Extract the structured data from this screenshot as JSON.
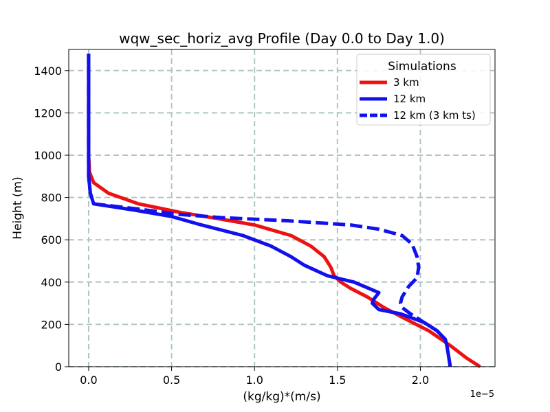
{
  "chart_data": {
    "type": "line",
    "title": "wqw_sec_horiz_avg Profile (Day 0.0 to Day 1.0)",
    "xlabel": "(kg/kg)*(m/s)",
    "ylabel": "Height (m)",
    "x_offset_label": "1e−5",
    "xlim": [
      -0.12,
      2.45
    ],
    "ylim": [
      0,
      1500
    ],
    "x_ticks": [
      0.0,
      0.5,
      1.0,
      1.5,
      2.0
    ],
    "x_tick_labels": [
      "0.0",
      "0.5",
      "1.0",
      "1.5",
      "2.0"
    ],
    "y_ticks": [
      0,
      200,
      400,
      600,
      800,
      1000,
      1200,
      1400
    ],
    "y_tick_labels": [
      "0",
      "200",
      "400",
      "600",
      "800",
      "1000",
      "1200",
      "1400"
    ],
    "grid": true,
    "legend": {
      "title": "Simulations",
      "placement": "top-right"
    },
    "series": [
      {
        "name": "3 km",
        "color": "#ee1111",
        "style": "solid",
        "x": [
          2.36,
          2.28,
          2.18,
          2.05,
          1.9,
          1.78,
          1.68,
          1.58,
          1.52,
          1.48,
          1.46,
          1.42,
          1.34,
          1.22,
          1.0,
          0.78,
          0.55,
          0.3,
          0.12,
          0.03,
          0.005,
          0.0,
          0.0,
          0.0,
          0.0
        ],
        "y": [
          0,
          40,
          100,
          170,
          230,
          280,
          330,
          370,
          400,
          430,
          470,
          520,
          570,
          620,
          670,
          700,
          730,
          770,
          820,
          870,
          920,
          1000,
          1200,
          1400,
          1480
        ]
      },
      {
        "name": "12 km",
        "color": "#1111ee",
        "style": "solid",
        "x": [
          2.18,
          2.17,
          2.16,
          2.15,
          2.1,
          2.02,
          1.88,
          1.75,
          1.71,
          1.72,
          1.75,
          1.6,
          1.44,
          1.3,
          1.22,
          1.1,
          0.93,
          0.68,
          0.5,
          0.28,
          0.03,
          0.01,
          0.0,
          0.0,
          0.0,
          0.0
        ],
        "y": [
          0,
          50,
          100,
          130,
          170,
          210,
          250,
          270,
          300,
          320,
          350,
          400,
          430,
          480,
          520,
          570,
          620,
          670,
          710,
          740,
          770,
          820,
          900,
          1000,
          1200,
          1480
        ]
      },
      {
        "name": "12 km (3 km ts)",
        "color": "#1111ee",
        "style": "dashed",
        "x": [
          2.18,
          2.17,
          2.16,
          2.15,
          2.1,
          2.02,
          1.94,
          1.89,
          1.88,
          1.89,
          1.93,
          1.98,
          1.99,
          1.98,
          1.95,
          1.89,
          1.75,
          1.58,
          1.2,
          0.8,
          0.55,
          0.3,
          0.03,
          0.01,
          0.0,
          0.0,
          0.0,
          0.0
        ],
        "y": [
          0,
          50,
          100,
          130,
          170,
          210,
          250,
          280,
          300,
          330,
          380,
          420,
          470,
          520,
          580,
          620,
          650,
          670,
          690,
          705,
          720,
          745,
          770,
          820,
          900,
          1000,
          1200,
          1480
        ]
      }
    ]
  }
}
